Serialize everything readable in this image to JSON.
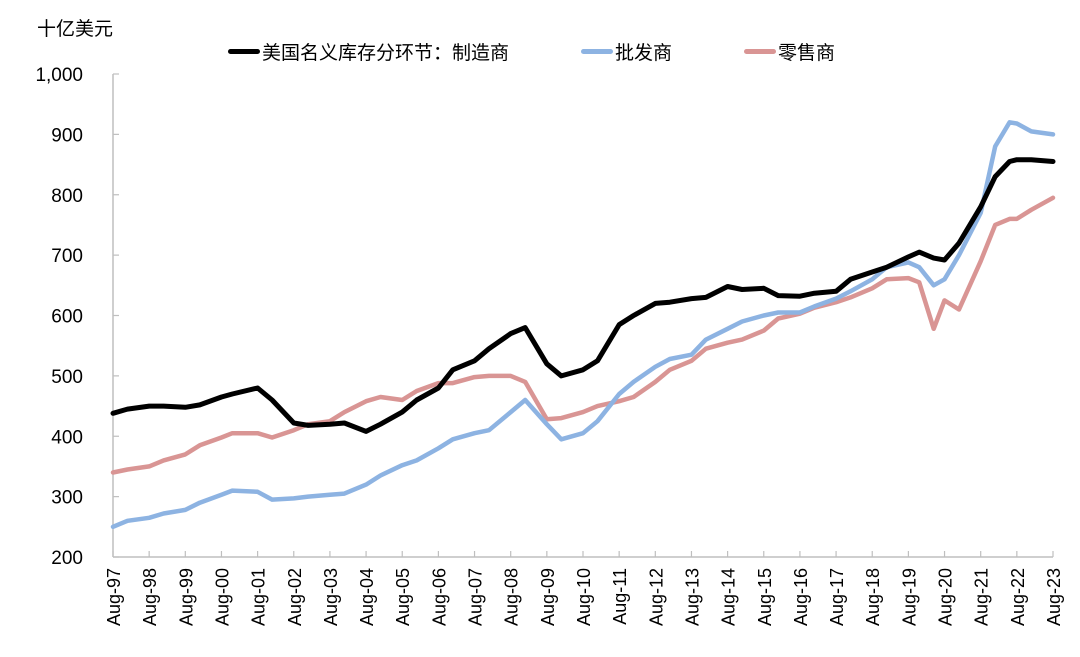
{
  "chart_data": {
    "type": "line",
    "title": "",
    "ylabel": "十亿美元",
    "xlabel": "",
    "ylim": [
      200,
      1000
    ],
    "yticks": [
      200,
      300,
      400,
      500,
      600,
      700,
      800,
      900,
      1000
    ],
    "ytick_labels": [
      "200",
      "300",
      "400",
      "500",
      "600",
      "700",
      "800",
      "900",
      "1,000"
    ],
    "x_tick_labels": [
      "Aug-97",
      "Aug-98",
      "Aug-99",
      "Aug-00",
      "Aug-01",
      "Aug-02",
      "Aug-03",
      "Aug-04",
      "Aug-05",
      "Aug-06",
      "Aug-07",
      "Aug-08",
      "Aug-09",
      "Aug-10",
      "Aug-11",
      "Aug-12",
      "Aug-13",
      "Aug-14",
      "Aug-15",
      "Aug-16",
      "Aug-17",
      "Aug-18",
      "Aug-19",
      "Aug-20",
      "Aug-21",
      "Aug-22",
      "Aug-23"
    ],
    "grid": false,
    "legend_position": "top",
    "x": [
      1997.6,
      1998.0,
      1998.6,
      1999.0,
      1999.6,
      2000.0,
      2000.6,
      2000.9,
      2001.6,
      2002.0,
      2002.6,
      2003.0,
      2003.6,
      2004.0,
      2004.6,
      2005.0,
      2005.6,
      2006.0,
      2006.6,
      2007.0,
      2007.6,
      2008.0,
      2008.6,
      2009.0,
      2009.6,
      2010.0,
      2010.6,
      2011.0,
      2011.6,
      2012.0,
      2012.6,
      2013.0,
      2013.6,
      2014.0,
      2014.6,
      2015.0,
      2015.6,
      2016.0,
      2016.6,
      2017.0,
      2017.6,
      2018.0,
      2018.6,
      2019.0,
      2019.6,
      2019.9,
      2020.3,
      2020.6,
      2021.0,
      2021.6,
      2022.0,
      2022.4,
      2022.6,
      2023.0,
      2023.6
    ],
    "series": [
      {
        "name": "美国名义库存分环节：制造商",
        "color": "#000000",
        "values": [
          438,
          445,
          450,
          450,
          448,
          452,
          465,
          470,
          480,
          460,
          422,
          418,
          420,
          422,
          408,
          420,
          440,
          460,
          480,
          510,
          525,
          545,
          570,
          580,
          520,
          500,
          510,
          525,
          585,
          600,
          620,
          622,
          628,
          630,
          648,
          643,
          645,
          633,
          632,
          637,
          640,
          660,
          672,
          680,
          697,
          705,
          695,
          692,
          720,
          780,
          830,
          855,
          858,
          858,
          855
        ]
      },
      {
        "name": "批发商",
        "color": "#8db3e2",
        "values": [
          250,
          260,
          265,
          272,
          278,
          290,
          303,
          310,
          308,
          295,
          297,
          300,
          303,
          305,
          320,
          335,
          352,
          360,
          380,
          395,
          405,
          410,
          440,
          460,
          420,
          395,
          405,
          425,
          470,
          490,
          515,
          528,
          535,
          560,
          578,
          590,
          600,
          605,
          605,
          615,
          628,
          640,
          660,
          680,
          688,
          680,
          650,
          660,
          700,
          770,
          880,
          920,
          918,
          905,
          900
        ]
      },
      {
        "name": "零售商",
        "color": "#d99594",
        "values": [
          340,
          345,
          350,
          360,
          370,
          385,
          398,
          405,
          405,
          398,
          410,
          420,
          425,
          440,
          458,
          465,
          460,
          475,
          488,
          488,
          498,
          500,
          500,
          490,
          428,
          430,
          440,
          450,
          458,
          465,
          490,
          510,
          525,
          545,
          555,
          560,
          575,
          595,
          603,
          613,
          622,
          630,
          645,
          660,
          662,
          655,
          578,
          625,
          610,
          690,
          750,
          760,
          760,
          775,
          795
        ]
      }
    ]
  },
  "legend": {
    "items": [
      {
        "label": "美国名义库存分环节：制造商",
        "color": "#000000"
      },
      {
        "label": "批发商",
        "color": "#8db3e2"
      },
      {
        "label": "零售商",
        "color": "#d99594"
      }
    ]
  }
}
